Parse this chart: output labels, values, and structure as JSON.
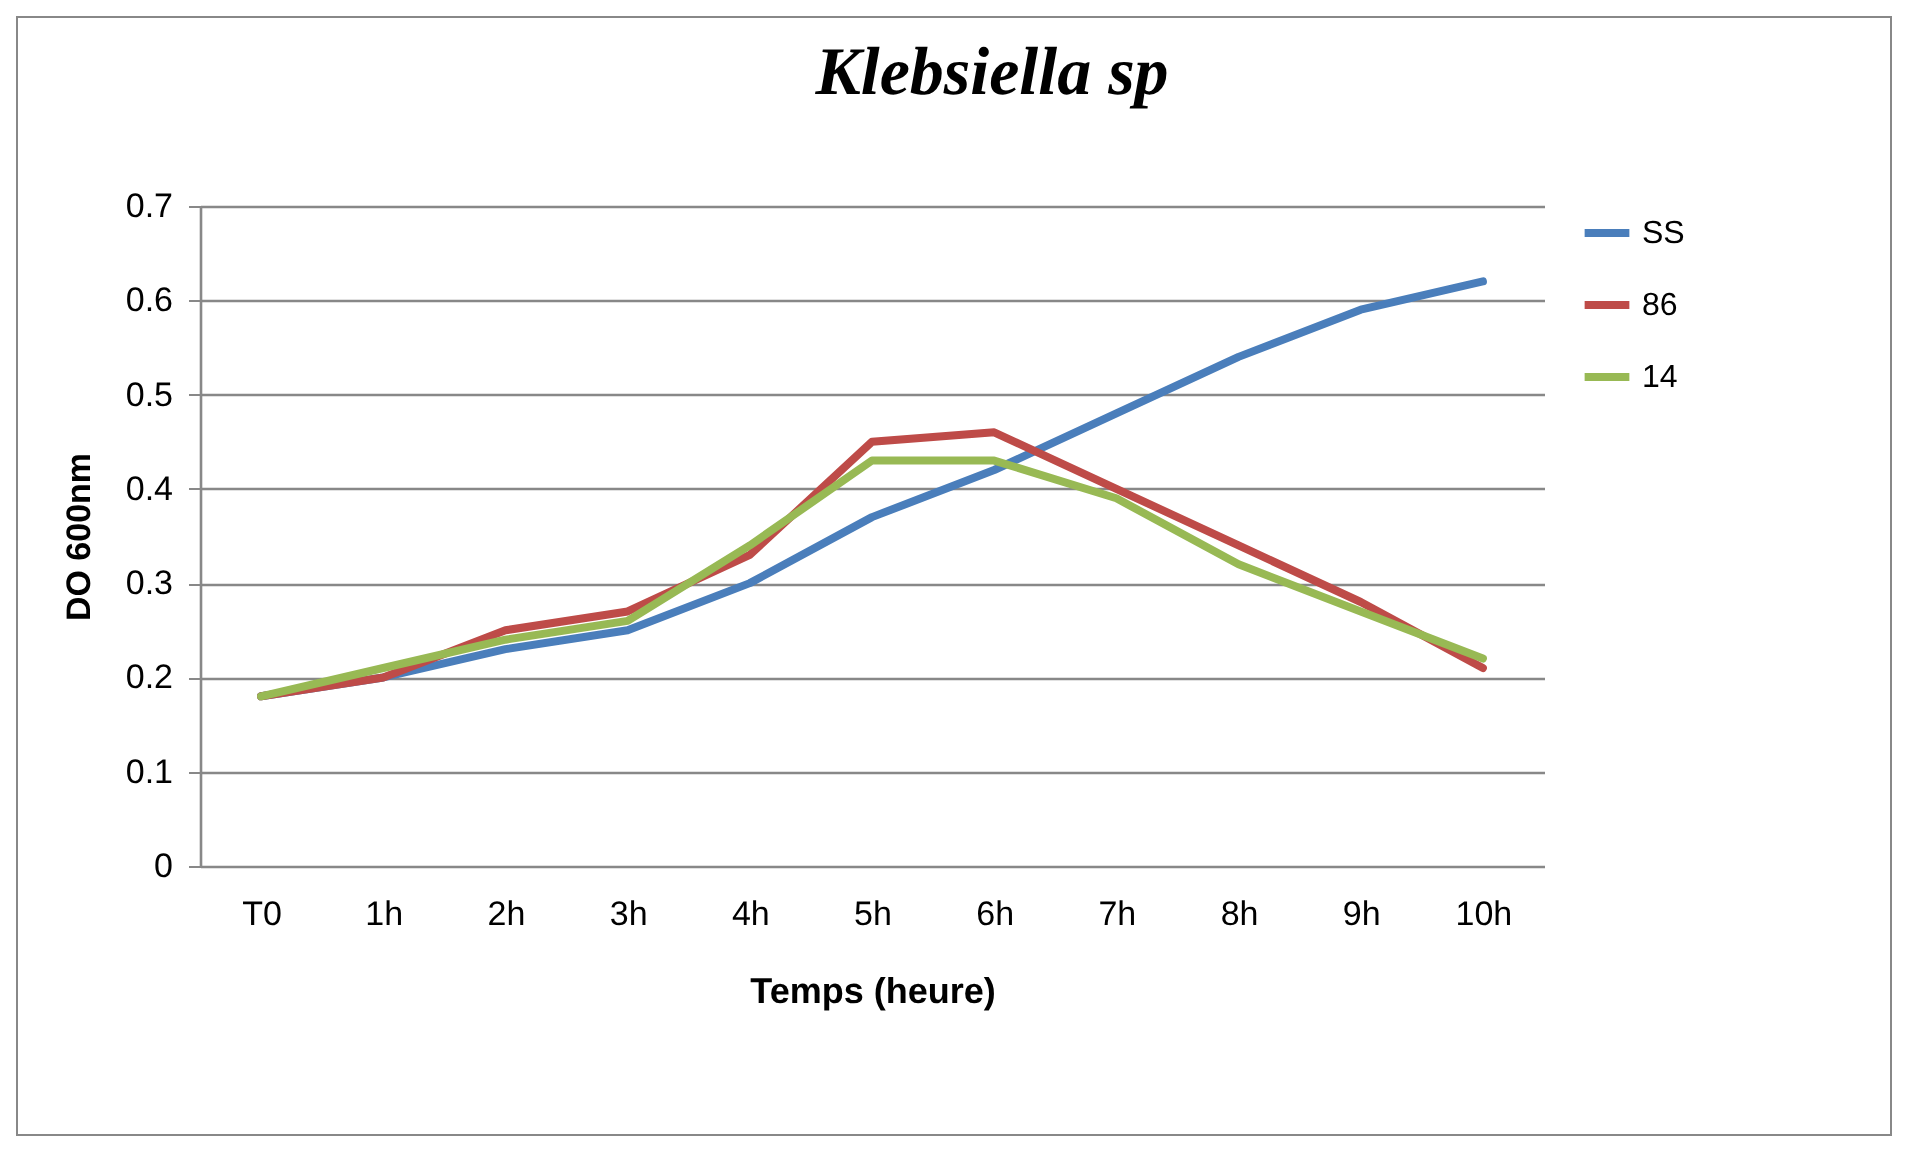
{
  "chart_data": {
    "type": "line",
    "title": "Klebsiella sp",
    "xlabel": "Temps (heure)",
    "ylabel": "DO 600nm",
    "categories": [
      "T0",
      "1h",
      "2h",
      "3h",
      "4h",
      "5h",
      "6h",
      "7h",
      "8h",
      "9h",
      "10h"
    ],
    "series": [
      {
        "name": "SS",
        "color": "#4a7ebb",
        "values": [
          0.18,
          0.2,
          0.23,
          0.25,
          0.3,
          0.37,
          0.42,
          0.48,
          0.54,
          0.59,
          0.62
        ]
      },
      {
        "name": "86",
        "color": "#be4b48",
        "values": [
          0.18,
          0.2,
          0.25,
          0.27,
          0.33,
          0.45,
          0.46,
          0.4,
          0.34,
          0.28,
          0.21
        ]
      },
      {
        "name": "14",
        "color": "#98b954",
        "values": [
          0.18,
          0.21,
          0.24,
          0.26,
          0.34,
          0.43,
          0.43,
          0.39,
          0.32,
          0.27,
          0.22
        ]
      }
    ],
    "ylim": [
      0,
      0.7
    ],
    "yticks": [
      0,
      0.1,
      0.2,
      0.3,
      0.4,
      0.5,
      0.6,
      0.7
    ],
    "grid": "y",
    "legend": "right",
    "marker": "none",
    "line_style": "solid"
  }
}
